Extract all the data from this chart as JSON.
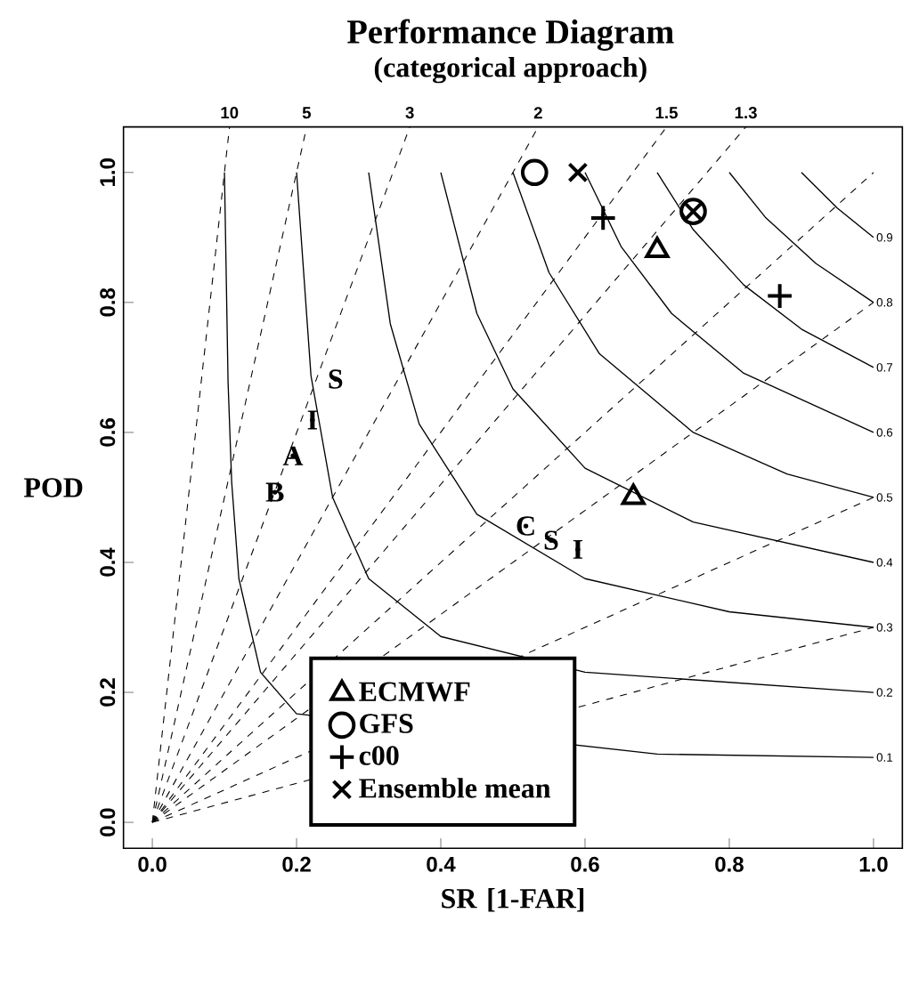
{
  "chart_data": {
    "type": "scatter",
    "title": "Performance Diagram",
    "subtitle": "(categorical approach)",
    "xlabel": "SR [1-FAR]",
    "ylabel": "POD",
    "xlim": [
      -0.04,
      1.04
    ],
    "ylim": [
      -0.04,
      1.07
    ],
    "xticks": [
      {
        "value": 0,
        "label": "0.0"
      },
      0.2,
      0.4,
      0.6,
      0.8,
      {
        "value": 1,
        "label": "1.0"
      }
    ],
    "yticks": [
      {
        "value": 0,
        "label": "0.0"
      },
      0.2,
      0.4,
      0.6,
      0.8,
      {
        "value": 1,
        "label": "1.0"
      }
    ],
    "legend": "bottom",
    "series": [
      {
        "name": "ECMWF",
        "color": "#000000",
        "marker": "triangle",
        "x": [
          0.7,
          0.667
        ],
        "values": [
          0.88,
          0.5
        ]
      },
      {
        "name": "GFS",
        "color": "#000000",
        "marker": "circle",
        "x": [
          0.53,
          0.75
        ],
        "values": [
          1.0,
          0.94
        ]
      },
      {
        "name": "c00",
        "color": "#000000",
        "marker": "plus",
        "x": [
          0.87,
          0.625
        ],
        "values": [
          0.81,
          0.93
        ]
      },
      {
        "name": "Ensemble mean",
        "color": "#000000",
        "marker": "cross",
        "x": [
          0.59,
          0.75
        ],
        "values": [
          1.0,
          0.94
        ]
      },
      {
        "marker": "none",
        "color": "#000000",
        "x": [
          0.254,
          0.222,
          0.195,
          0.17,
          0.518,
          0.553,
          0.59
        ],
        "values": [
          0.682,
          0.619,
          0.564,
          0.508,
          0.456,
          0.434,
          0.42
        ],
        "value_labels": [
          "S",
          "I",
          "A",
          "B",
          "C",
          "S",
          "I"
        ]
      },
      {
        "name": "10",
        "type": "line",
        "line_style": "dashed",
        "color": "#000000",
        "x": [
          0,
          0.107
        ],
        "values": [
          0,
          1.07
        ]
      },
      {
        "name": "5",
        "type": "line",
        "line_style": "dashed",
        "color": "#000000",
        "x": [
          0,
          0.214
        ],
        "values": [
          0,
          1.07
        ]
      },
      {
        "name": "3",
        "type": "line",
        "line_style": "dashed",
        "color": "#000000",
        "x": [
          0,
          0.357
        ],
        "values": [
          0,
          1.07
        ]
      },
      {
        "name": "2",
        "type": "line",
        "line_style": "dashed",
        "color": "#000000",
        "x": [
          0,
          0.535
        ],
        "values": [
          0,
          1.07
        ]
      },
      {
        "name": "1.5",
        "type": "line",
        "line_style": "dashed",
        "color": "#000000",
        "x": [
          0,
          0.713
        ],
        "values": [
          0,
          1.07
        ]
      },
      {
        "name": "1.3",
        "type": "line",
        "line_style": "dashed",
        "color": "#000000",
        "x": [
          0,
          0.823
        ],
        "values": [
          0,
          1.07
        ]
      },
      {
        "type": "line",
        "line_style": "dashed",
        "color": "#000000",
        "x": [
          0,
          1
        ],
        "values": [
          0,
          1
        ]
      },
      {
        "type": "line",
        "line_style": "dashed",
        "color": "#000000",
        "x": [
          0,
          1
        ],
        "values": [
          0,
          0.8
        ]
      },
      {
        "type": "line",
        "line_style": "dashed",
        "color": "#000000",
        "x": [
          0,
          1
        ],
        "values": [
          0,
          0.5
        ]
      },
      {
        "type": "line",
        "line_style": "dashed",
        "color": "#000000",
        "x": [
          0,
          1
        ],
        "values": [
          0,
          0.3
        ]
      },
      {
        "name": "0.1",
        "type": "line",
        "line_style": "solid",
        "color": "#000000",
        "x": [
          0.1,
          0.105,
          0.11,
          0.12,
          0.15,
          0.2,
          0.7,
          1
        ],
        "values": [
          1,
          0.678,
          0.524,
          0.375,
          0.231,
          0.167,
          0.105,
          0.1
        ]
      },
      {
        "name": "0.2",
        "type": "line",
        "line_style": "solid",
        "color": "#000000",
        "x": [
          0.2,
          0.22,
          0.25,
          0.3,
          0.4,
          0.6,
          1
        ],
        "values": [
          1,
          0.687,
          0.5,
          0.375,
          0.286,
          0.231,
          0.2
        ]
      },
      {
        "name": "0.3",
        "type": "line",
        "line_style": "solid",
        "color": "#000000",
        "x": [
          0.3,
          0.33,
          0.37,
          0.45,
          0.6,
          0.8,
          1
        ],
        "values": [
          1,
          0.767,
          0.613,
          0.474,
          0.375,
          0.324,
          0.3
        ]
      },
      {
        "name": "0.4",
        "type": "line",
        "line_style": "solid",
        "color": "#000000",
        "x": [
          0.4,
          0.45,
          0.5,
          0.6,
          0.75,
          1
        ],
        "values": [
          1,
          0.783,
          0.667,
          0.545,
          0.462,
          0.4
        ]
      },
      {
        "name": "0.5",
        "type": "line",
        "line_style": "solid",
        "color": "#000000",
        "x": [
          0.5,
          0.55,
          0.62,
          0.75,
          0.88,
          1
        ],
        "values": [
          1,
          0.846,
          0.721,
          0.6,
          0.536,
          0.5
        ]
      },
      {
        "name": "0.6",
        "type": "line",
        "line_style": "solid",
        "color": "#000000",
        "x": [
          0.6,
          0.65,
          0.72,
          0.82,
          1
        ],
        "values": [
          1,
          0.886,
          0.783,
          0.691,
          0.6
        ]
      },
      {
        "name": "0.7",
        "type": "line",
        "line_style": "solid",
        "color": "#000000",
        "x": [
          0.7,
          0.75,
          0.82,
          0.9,
          1
        ],
        "values": [
          1,
          0.912,
          0.827,
          0.759,
          0.7
        ]
      },
      {
        "name": "0.8",
        "type": "line",
        "line_style": "solid",
        "color": "#000000",
        "x": [
          0.8,
          0.85,
          0.92,
          1
        ],
        "values": [
          1,
          0.931,
          0.86,
          0.8
        ]
      },
      {
        "name": "0.9",
        "type": "line",
        "line_style": "solid",
        "color": "#000000",
        "x": [
          0.9,
          0.95,
          1
        ],
        "values": [
          1,
          0.945,
          0.9
        ]
      }
    ]
  }
}
